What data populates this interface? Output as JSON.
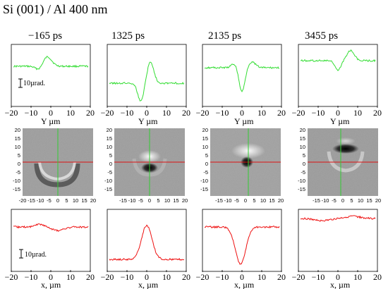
{
  "title": "Si (001) / Al  400 nm",
  "panels": [
    {
      "time": "−165 ps"
    },
    {
      "time": "1325 ps"
    },
    {
      "time": "2135 ps"
    },
    {
      "time": "3455 ps"
    }
  ],
  "top_row": {
    "axis_label": "Y   µm",
    "ticks": [
      "−20",
      "−10",
      "0",
      "10",
      "20"
    ],
    "scale_label": "10µrad.",
    "color": "#33dd33"
  },
  "bottom_row": {
    "axis_label": "x, µm",
    "ticks": [
      "−20",
      "−10",
      "0",
      "10",
      "20"
    ],
    "scale_label": "10µrad.",
    "color": "#ee1111"
  },
  "image_row": {
    "y_ticks": [
      "20",
      "15",
      "10",
      "5",
      "0",
      "-5",
      "-10",
      "-15"
    ],
    "x_ticks": [
      "-20",
      "-15",
      "-10",
      "-5",
      "0",
      "5",
      "10",
      "15",
      "20"
    ],
    "crosshair_h_color": "#dd1111",
    "crosshair_v_color": "#33cc33"
  }
}
